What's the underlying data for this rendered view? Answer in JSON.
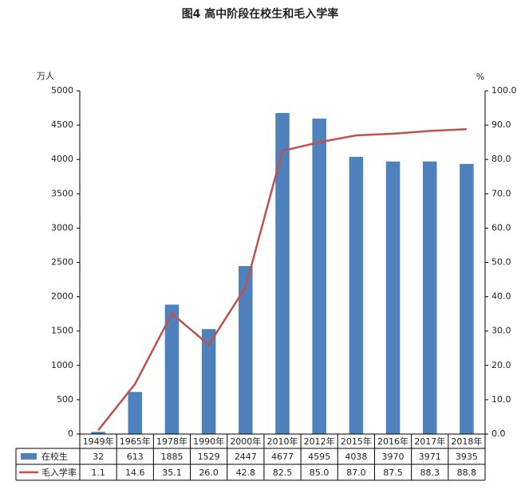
{
  "chart_data": {
    "type": "bar-line",
    "title": "图4  高中阶段在校生和毛入学率",
    "y_label": "万人",
    "y2_label": "%",
    "categories": [
      "1949年",
      "1965年",
      "1978年",
      "1990年",
      "2000年",
      "2010年",
      "2012年",
      "2015年",
      "2016年",
      "2017年",
      "2018年"
    ],
    "series": [
      {
        "name": "在校生",
        "type": "bar",
        "color": "#4f81bd",
        "values": [
          32,
          613,
          1885,
          1529,
          2447,
          4677,
          4595,
          4038,
          3970,
          3971,
          3935
        ]
      },
      {
        "name": "毛入学率",
        "type": "line",
        "axis": "y2",
        "color": "#c0504d",
        "values": [
          1.1,
          14.6,
          35.1,
          26.0,
          42.8,
          82.5,
          85.0,
          87.0,
          87.5,
          88.3,
          88.8
        ],
        "value_labels": [
          "1.1",
          "14.6",
          "35.1",
          "26.0",
          "42.8",
          "82.5",
          "85.0",
          "87.0",
          "87.5",
          "88.3",
          "88.8"
        ]
      }
    ],
    "ylim": [
      0,
      5000
    ],
    "yticks": [
      0,
      500,
      1000,
      1500,
      2000,
      2500,
      3000,
      3500,
      4000,
      4500,
      5000
    ],
    "y2lim": [
      0,
      100
    ],
    "y2ticks": [
      {
        "value": 0,
        "label": "0.0"
      },
      {
        "value": 10,
        "label": "10.0"
      },
      {
        "value": 20,
        "label": "20.0"
      },
      {
        "value": 30,
        "label": "30.0"
      },
      {
        "value": 40,
        "label": "40.0"
      },
      {
        "value": 50,
        "label": "50.0"
      },
      {
        "value": 60,
        "label": "60.0"
      },
      {
        "value": 70,
        "label": "70.0"
      },
      {
        "value": 80,
        "label": "80.0"
      },
      {
        "value": 90,
        "label": "90.0"
      },
      {
        "value": 100,
        "label": "100.0"
      }
    ],
    "grid": false
  }
}
